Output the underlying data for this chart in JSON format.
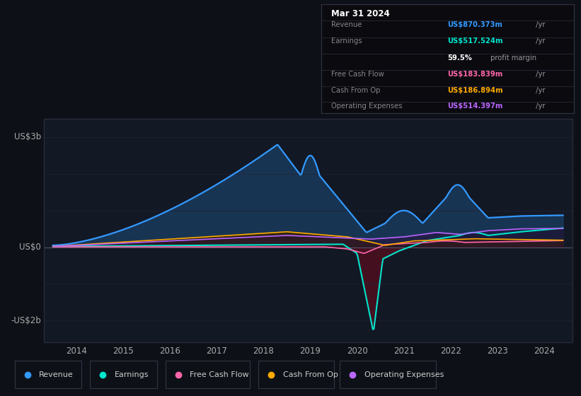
{
  "bg_color": "#0d1117",
  "plot_bg_color": "#131825",
  "tooltip_bg": "#0a0a0f",
  "title": "Mar 31 2024",
  "tooltip_rows": [
    {
      "label": "Revenue",
      "value": "US$870.373m",
      "unit": " /yr",
      "value_color": "#3399ff",
      "label_color": "#888888"
    },
    {
      "label": "Earnings",
      "value": "US$517.524m",
      "unit": " /yr",
      "value_color": "#00e5cc",
      "label_color": "#888888"
    },
    {
      "label": "",
      "value": "59.5%",
      "unit": " profit margin",
      "value_color": "#ffffff",
      "label_color": "#888888"
    },
    {
      "label": "Free Cash Flow",
      "value": "US$183.839m",
      "unit": " /yr",
      "value_color": "#ff66aa",
      "label_color": "#888888"
    },
    {
      "label": "Cash From Op",
      "value": "US$186.894m",
      "unit": " /yr",
      "value_color": "#ffaa00",
      "label_color": "#888888"
    },
    {
      "label": "Operating Expenses",
      "value": "US$514.397m",
      "unit": " /yr",
      "value_color": "#bb66ff",
      "label_color": "#888888"
    }
  ],
  "ylabel_top": "US$3b",
  "ylabel_zero": "US$0",
  "ylabel_bottom": "-US$2b",
  "ylim": [
    -2.6,
    3.5
  ],
  "xlim": [
    2013.3,
    2024.6
  ],
  "xticks": [
    2014,
    2015,
    2016,
    2017,
    2018,
    2019,
    2020,
    2021,
    2022,
    2023,
    2024
  ],
  "legend_entries": [
    {
      "label": "Revenue",
      "color": "#3399ff"
    },
    {
      "label": "Earnings",
      "color": "#00e5cc"
    },
    {
      "label": "Free Cash Flow",
      "color": "#ff66aa"
    },
    {
      "label": "Cash From Op",
      "color": "#ffaa00"
    },
    {
      "label": "Operating Expenses",
      "color": "#bb66ff"
    }
  ],
  "rev_color": "#3399ff",
  "rev_fill": "#1a3a5c",
  "earn_color": "#00e5cc",
  "earn_fill_neg": "#4a1020",
  "earn_fill_pos": "#0a2530",
  "fcf_color": "#ff66aa",
  "cfop_color": "#ffaa00",
  "cfop_fill": "#3a2500",
  "opex_color": "#bb66ff",
  "opex_fill": "#2a0a3a",
  "grid_color": "#222233",
  "zero_line_color": "#555566",
  "border_color": "#2a2a3a"
}
